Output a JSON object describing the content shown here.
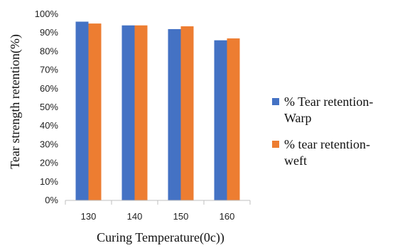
{
  "chart_data": {
    "type": "bar",
    "categories": [
      "130",
      "140",
      "150",
      "160"
    ],
    "series": [
      {
        "name": "% Tear retention-Warp",
        "legend_lines": [
          "% Tear retention-",
          "Warp"
        ],
        "color": "#4472C4",
        "values": [
          96,
          94,
          92,
          86
        ]
      },
      {
        "name": "% tear retention-weft",
        "legend_lines": [
          "% tear retention-",
          "weft"
        ],
        "color": "#ED7D31",
        "values": [
          95,
          94,
          93.5,
          87
        ]
      }
    ],
    "xlabel": "Curing Temperature(0c))",
    "ylabel": "Tear strength retention(%)",
    "ylim": [
      0,
      100
    ],
    "yticks": [
      "0%",
      "10%",
      "20%",
      "30%",
      "40%",
      "50%",
      "60%",
      "70%",
      "80%",
      "90%",
      "100%"
    ],
    "grid": false,
    "legend_position": "right"
  }
}
